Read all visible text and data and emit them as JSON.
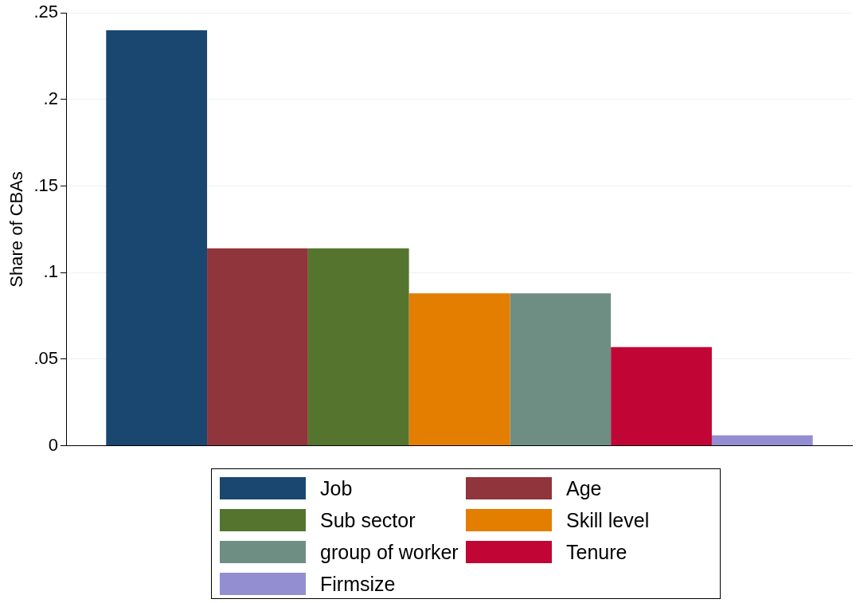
{
  "chart_data": {
    "type": "bar",
    "ylabel": "Share of CBAs",
    "categories": [
      null
    ],
    "series": [
      {
        "name": "Job",
        "color": "#1a476f",
        "values": [
          0.24
        ]
      },
      {
        "name": "Age",
        "color": "#90353b",
        "values": [
          0.114
        ]
      },
      {
        "name": "Sub sector",
        "color": "#55752f",
        "values": [
          0.114
        ]
      },
      {
        "name": "Skill level",
        "color": "#e37e00",
        "values": [
          0.088
        ]
      },
      {
        "name": "group of worker",
        "color": "#6e8e84",
        "values": [
          0.088
        ]
      },
      {
        "name": "Tenure",
        "color": "#c10534",
        "values": [
          0.057
        ]
      },
      {
        "name": "Firmsize",
        "color": "#938dd2",
        "values": [
          0.006
        ]
      }
    ],
    "ylim": [
      0,
      0.25
    ],
    "yticks": [
      {
        "value": 0,
        "label": "0"
      },
      {
        "value": 0.05,
        "label": ".05"
      },
      {
        "value": 0.1,
        "label": ".1"
      },
      {
        "value": 0.15,
        "label": ".15"
      },
      {
        "value": 0.2,
        "label": ".2"
      },
      {
        "value": 0.25,
        "label": ".25"
      }
    ],
    "grid": "y",
    "legend": "bottom"
  }
}
